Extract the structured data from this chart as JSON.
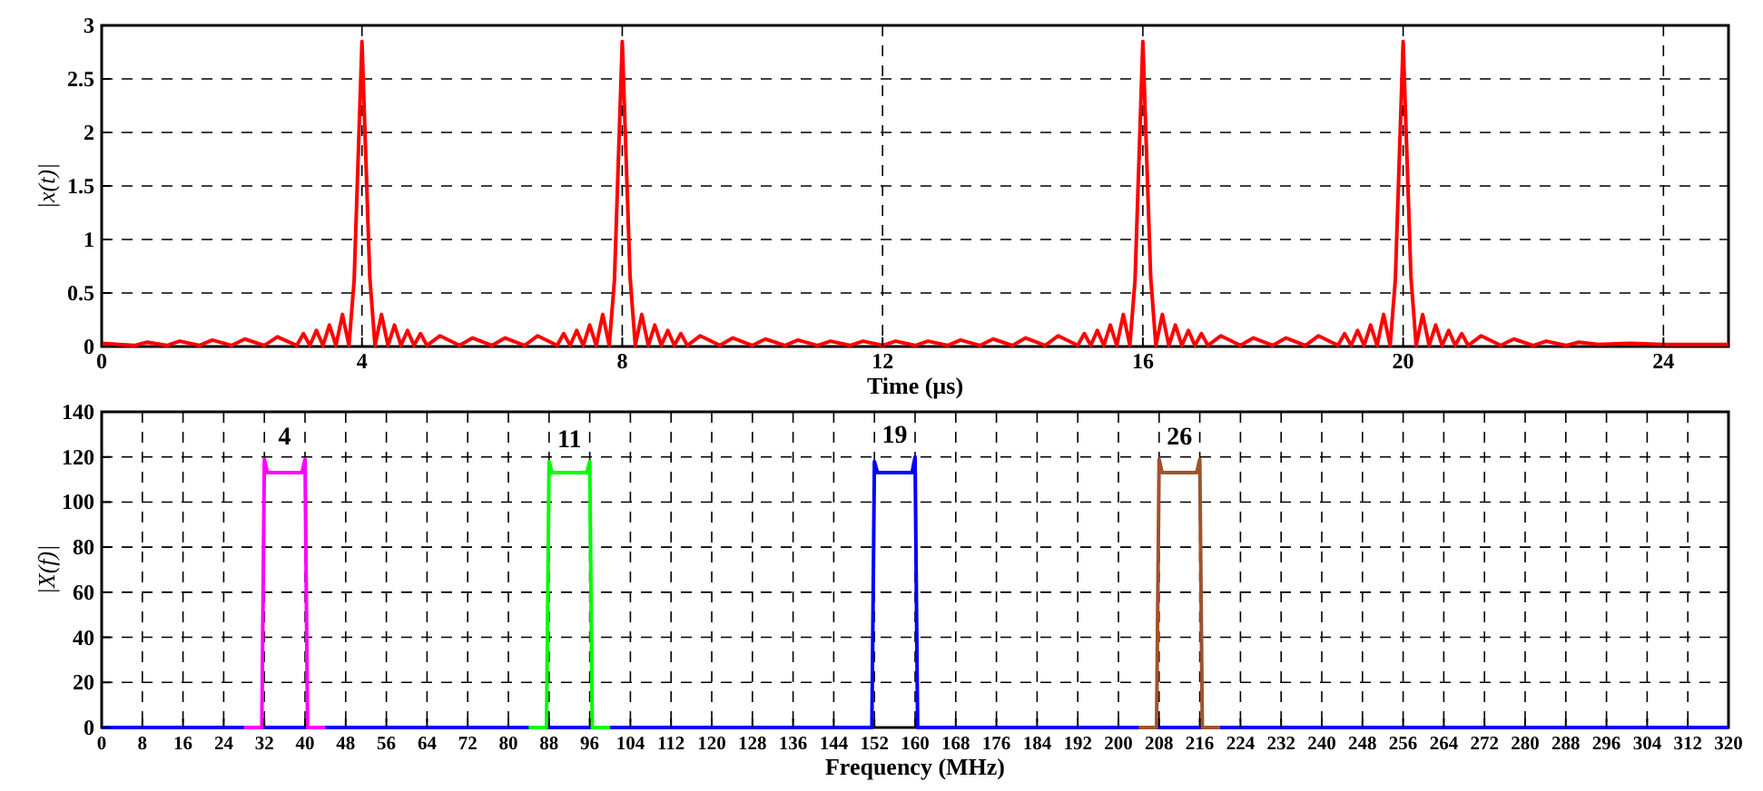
{
  "chart_data": [
    {
      "type": "line",
      "xlabel": "Time (µs)",
      "ylabel": "|x(t)|",
      "xlim": [
        0,
        25
      ],
      "xticks": [
        0,
        4,
        8,
        12,
        16,
        20,
        24
      ],
      "ylim": [
        0,
        3
      ],
      "yticks": [
        0,
        0.5,
        1,
        1.5,
        2,
        2.5,
        3
      ],
      "grid": true,
      "line_style": "solid",
      "marker": "none",
      "series": [
        {
          "color": "#ff0000",
          "x": [
            0,
            0.5,
            0.7,
            1,
            1.2,
            1.5,
            1.7,
            2,
            2.2,
            2.5,
            2.7,
            3,
            3.1,
            3.2,
            3.3,
            3.4,
            3.5,
            3.6,
            3.7,
            3.8,
            3.88,
            4,
            4.12,
            4.2,
            4.3,
            4.4,
            4.5,
            4.6,
            4.7,
            4.8,
            4.9,
            5,
            5.2,
            5.5,
            5.7,
            6,
            6.2,
            6.5,
            6.7,
            7,
            7.1,
            7.2,
            7.3,
            7.4,
            7.5,
            7.6,
            7.7,
            7.8,
            7.88,
            8,
            8.12,
            8.2,
            8.3,
            8.4,
            8.5,
            8.6,
            8.7,
            8.8,
            8.9,
            9,
            9.2,
            9.5,
            9.7,
            10,
            10.2,
            10.5,
            10.7,
            11,
            11.2,
            11.5,
            11.7,
            12,
            12.2,
            12.5,
            12.7,
            13,
            13.2,
            13.5,
            13.7,
            14,
            14.2,
            14.5,
            14.7,
            15,
            15.1,
            15.2,
            15.3,
            15.4,
            15.5,
            15.6,
            15.7,
            15.8,
            15.88,
            16,
            16.12,
            16.2,
            16.3,
            16.4,
            16.5,
            16.6,
            16.7,
            16.8,
            16.9,
            17,
            17.2,
            17.5,
            17.7,
            18,
            18.2,
            18.5,
            18.7,
            19,
            19.1,
            19.2,
            19.3,
            19.4,
            19.5,
            19.6,
            19.7,
            19.8,
            19.88,
            20,
            20.12,
            20.2,
            20.3,
            20.4,
            20.5,
            20.6,
            20.7,
            20.8,
            20.9,
            21,
            21.2,
            21.5,
            21.7,
            22,
            22.2,
            22.5,
            22.7,
            23,
            23.5,
            24,
            24.5,
            25
          ],
          "values": [
            0.03,
            0.01,
            0.04,
            0.01,
            0.05,
            0.01,
            0.06,
            0.01,
            0.07,
            0.01,
            0.09,
            0.01,
            0.12,
            0.01,
            0.15,
            0.01,
            0.2,
            0.01,
            0.3,
            0.01,
            0.62,
            2.85,
            0.65,
            0.01,
            0.3,
            0.01,
            0.2,
            0.01,
            0.15,
            0.01,
            0.12,
            0.01,
            0.1,
            0.01,
            0.08,
            0.01,
            0.08,
            0.01,
            0.1,
            0.01,
            0.12,
            0.01,
            0.15,
            0.01,
            0.2,
            0.01,
            0.3,
            0.01,
            0.62,
            2.85,
            0.65,
            0.01,
            0.3,
            0.01,
            0.2,
            0.01,
            0.15,
            0.01,
            0.12,
            0.01,
            0.1,
            0.01,
            0.08,
            0.01,
            0.07,
            0.01,
            0.06,
            0.01,
            0.05,
            0.01,
            0.05,
            0.01,
            0.05,
            0.01,
            0.05,
            0.01,
            0.06,
            0.01,
            0.07,
            0.01,
            0.08,
            0.01,
            0.1,
            0.01,
            0.12,
            0.01,
            0.15,
            0.01,
            0.2,
            0.01,
            0.3,
            0.01,
            0.62,
            2.85,
            0.65,
            0.01,
            0.3,
            0.01,
            0.2,
            0.01,
            0.15,
            0.01,
            0.12,
            0.01,
            0.1,
            0.01,
            0.08,
            0.01,
            0.08,
            0.01,
            0.1,
            0.01,
            0.12,
            0.01,
            0.15,
            0.01,
            0.2,
            0.01,
            0.3,
            0.01,
            0.62,
            2.85,
            0.65,
            0.01,
            0.3,
            0.01,
            0.2,
            0.01,
            0.15,
            0.01,
            0.12,
            0.01,
            0.1,
            0.01,
            0.07,
            0.01,
            0.05,
            0.01,
            0.04,
            0.02,
            0.03,
            0.02,
            0.02,
            0.02
          ]
        }
      ]
    },
    {
      "type": "line",
      "xlabel": "Frequency (MHz)",
      "ylabel": "|X(f)|",
      "xlim": [
        0,
        320
      ],
      "xticks": [
        0,
        8,
        16,
        24,
        32,
        40,
        48,
        56,
        64,
        72,
        80,
        88,
        96,
        104,
        112,
        120,
        128,
        136,
        144,
        152,
        160,
        168,
        176,
        184,
        192,
        200,
        208,
        216,
        224,
        232,
        240,
        248,
        256,
        264,
        272,
        280,
        288,
        296,
        304,
        312,
        320
      ],
      "ylim": [
        0,
        140
      ],
      "yticks": [
        0,
        20,
        40,
        60,
        80,
        100,
        120,
        140
      ],
      "grid": true,
      "line_style": "solid",
      "marker": "none",
      "annotations": [
        "4",
        "11",
        "19",
        "26"
      ],
      "series": [
        {
          "color": "#ff00ff",
          "x": [
            28,
            31.5,
            32,
            32.6,
            36,
            39.4,
            40,
            40.5,
            44
          ],
          "values": [
            0,
            0,
            119,
            113,
            113,
            113,
            119,
            0,
            0
          ]
        },
        {
          "color": "#00ff00",
          "x": [
            84,
            87.5,
            88,
            88.6,
            92,
            95.4,
            96,
            96.5,
            100
          ],
          "values": [
            0,
            0,
            118,
            113,
            113,
            113,
            118,
            0,
            0
          ]
        },
        {
          "color": "#0000ff",
          "x": [
            0,
            151.5,
            152,
            152.6,
            156,
            159.4,
            160,
            160.5,
            320
          ],
          "values": [
            0,
            0,
            118,
            113,
            113,
            113,
            120,
            0,
            0
          ]
        },
        {
          "color": "#a0522d",
          "x": [
            204,
            207.5,
            208,
            208.6,
            212,
            215.4,
            216,
            216.5,
            220
          ],
          "values": [
            0,
            0,
            119,
            113,
            113,
            113,
            119,
            0,
            0
          ]
        }
      ]
    }
  ]
}
